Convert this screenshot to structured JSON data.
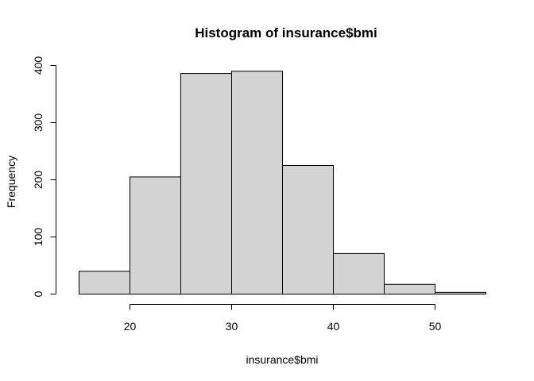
{
  "chart_data": {
    "type": "bar",
    "subtype": "histogram",
    "title": "Histogram of insurance$bmi",
    "xlabel": "insurance$bmi",
    "ylabel": "Frequency",
    "bins": [
      {
        "start": 15,
        "end": 20,
        "count": 40
      },
      {
        "start": 20,
        "end": 25,
        "count": 205
      },
      {
        "start": 25,
        "end": 30,
        "count": 386
      },
      {
        "start": 30,
        "end": 35,
        "count": 390
      },
      {
        "start": 35,
        "end": 40,
        "count": 225
      },
      {
        "start": 40,
        "end": 45,
        "count": 71
      },
      {
        "start": 45,
        "end": 50,
        "count": 17
      },
      {
        "start": 50,
        "end": 55,
        "count": 3
      }
    ],
    "xlim": [
      15,
      55
    ],
    "ylim": [
      0,
      400
    ],
    "xticks": [
      20,
      30,
      40,
      50
    ],
    "yticks": [
      0,
      100,
      200,
      300,
      400
    ]
  }
}
